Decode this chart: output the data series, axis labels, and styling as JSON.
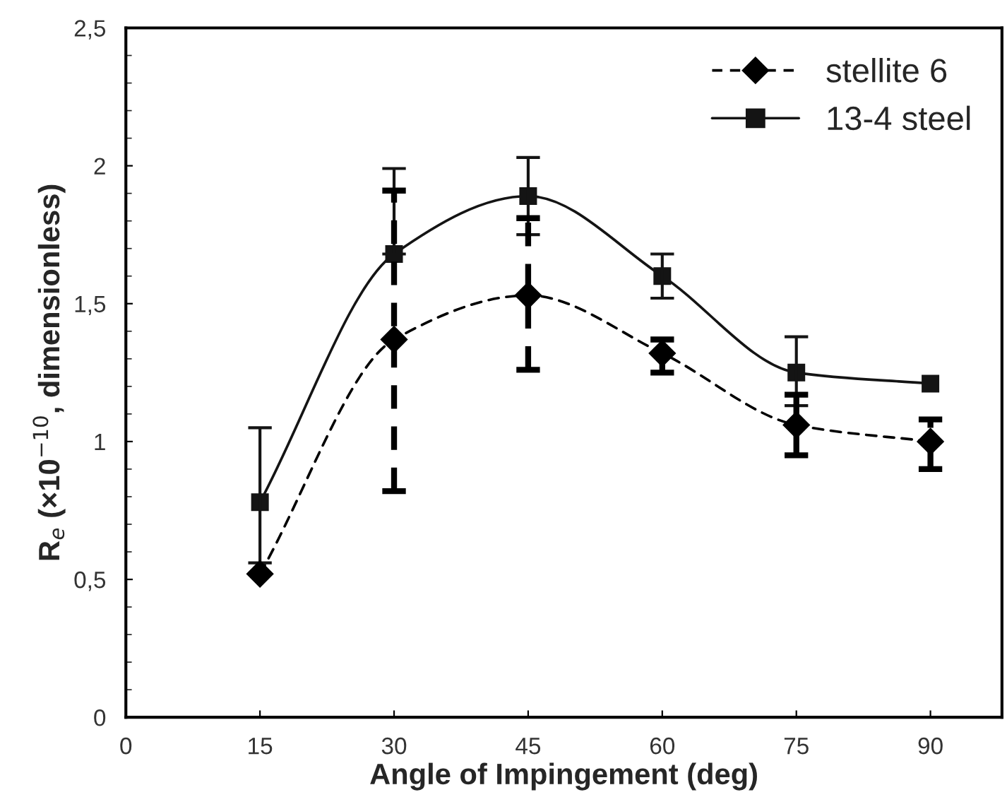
{
  "chart_data": {
    "type": "line",
    "xlabel": "Angle of Impingement (deg)",
    "ylabel": "R$_{e}$ (×10$^{−10}$, dimensionless)",
    "x": [
      15,
      30,
      45,
      60,
      75,
      90
    ],
    "series": [
      {
        "name": "stellite 6",
        "color": "#000000",
        "marker": "diamond",
        "line_style": "dashed",
        "values": [
          0.52,
          1.37,
          1.53,
          1.32,
          1.06,
          1.0
        ],
        "errors": [
          null,
          [
            0.82,
            1.91
          ],
          [
            1.26,
            1.81
          ],
          [
            1.25,
            1.37
          ],
          [
            0.95,
            1.17
          ],
          [
            0.9,
            1.08
          ]
        ]
      },
      {
        "name": "13-4 steel",
        "color": "#141414",
        "marker": "square",
        "line_style": "solid",
        "values": [
          0.78,
          1.68,
          1.89,
          1.6,
          1.25,
          1.21
        ],
        "errors": [
          [
            0.56,
            1.05
          ],
          [
            1.68,
            1.99
          ],
          [
            1.75,
            2.03
          ],
          [
            1.52,
            1.68
          ],
          [
            1.13,
            1.38
          ],
          null
        ]
      }
    ],
    "xlim": [
      0,
      98
    ],
    "xticks": [
      0,
      15,
      30,
      45,
      60,
      75,
      90
    ],
    "ylim": [
      0,
      2.5
    ],
    "yticks": [
      0,
      {
        "value": 0.5,
        "label": "0,5"
      },
      1,
      {
        "value": 1.5,
        "label": "1,5"
      },
      2,
      {
        "value": 2.5,
        "label": "2,5"
      }
    ],
    "grid": false,
    "legend": "top right"
  }
}
